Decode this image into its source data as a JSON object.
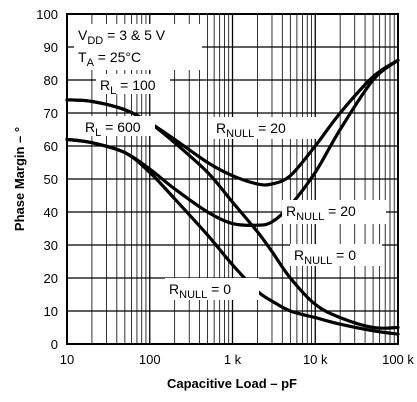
{
  "chart_data": {
    "type": "line",
    "title": "",
    "xlabel": "Capacitive Load – pF",
    "ylabel": "Phase Margin – °",
    "xscale": "log",
    "xlim": [
      10,
      100000
    ],
    "ylim": [
      0,
      100
    ],
    "grid": true,
    "x_ticks": [
      {
        "value": 10,
        "label": "10"
      },
      {
        "value": 100,
        "label": "100"
      },
      {
        "value": 1000,
        "label": "1 k"
      },
      {
        "value": 10000,
        "label": "10 k"
      },
      {
        "value": 100000,
        "label": "100 k"
      }
    ],
    "y_ticks": [
      0,
      10,
      20,
      30,
      40,
      50,
      60,
      70,
      80,
      90,
      100
    ],
    "conditions": {
      "vdd": {
        "main": "V",
        "sub": "DD",
        "rest": " = 3 & 5 V"
      },
      "ta": {
        "main": "T",
        "sub": "A",
        "rest": " = 25°C"
      }
    },
    "annotations": [
      {
        "main": "R",
        "sub": "L",
        "rest": " = 100"
      },
      {
        "main": "R",
        "sub": "L",
        "rest": " = 600"
      },
      {
        "main": "R",
        "sub": "NULL",
        "rest": " = 20"
      },
      {
        "main": "R",
        "sub": "NULL",
        "rest": " = 20"
      },
      {
        "main": "R",
        "sub": "NULL",
        "rest": " = 0"
      },
      {
        "main": "R",
        "sub": "NULL",
        "rest": " = 0"
      }
    ],
    "series": [
      {
        "x": [
          10,
          20,
          50,
          100,
          200,
          500,
          1000,
          2000,
          3000,
          5000,
          10000,
          20000,
          50000,
          100000
        ],
        "y": [
          74,
          73.5,
          71,
          67,
          62,
          55,
          51,
          48.5,
          48.5,
          51,
          60,
          70,
          81,
          86
        ]
      },
      {
        "x": [
          10,
          20,
          50,
          100,
          200,
          500,
          1000,
          2000,
          3000,
          5000,
          10000,
          20000,
          50000,
          100000
        ],
        "y": [
          62,
          61,
          58,
          53,
          47,
          40,
          36.5,
          36,
          37,
          42,
          52,
          65,
          80,
          86
        ]
      },
      {
        "x": [
          10,
          20,
          50,
          100,
          200,
          500,
          1000,
          2000,
          3000,
          5000,
          10000,
          20000,
          50000,
          100000
        ],
        "y": [
          74,
          73.5,
          71,
          67,
          61,
          52,
          43,
          34,
          28,
          20,
          12,
          8,
          5,
          5
        ]
      },
      {
        "x": [
          10,
          20,
          50,
          100,
          200,
          500,
          1000,
          2000,
          3000,
          5000,
          10000,
          20000,
          50000,
          100000
        ],
        "y": [
          62,
          61,
          58,
          52,
          44,
          33,
          24,
          16,
          13,
          10,
          8,
          6,
          4,
          3
        ]
      }
    ]
  }
}
